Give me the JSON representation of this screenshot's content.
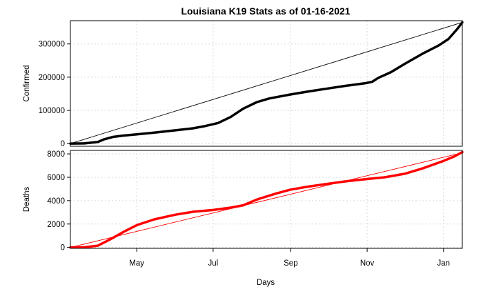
{
  "chart_data": {
    "type": "line",
    "title": "Louisiana K19 Stats as of 01-16-2021",
    "xlabel": "Days",
    "x_range": [
      "2020-03-09",
      "2021-01-16"
    ],
    "x_ticks": [
      {
        "date": "2020-05-01",
        "label": "May"
      },
      {
        "date": "2020-07-01",
        "label": "Jul"
      },
      {
        "date": "2020-09-01",
        "label": "Sep"
      },
      {
        "date": "2020-11-01",
        "label": "Nov"
      },
      {
        "date": "2021-01-01",
        "label": "Jan"
      }
    ],
    "grid": true,
    "panels": [
      {
        "ylabel": "Confirmed",
        "ylim": [
          -8000,
          370000
        ],
        "yticks": [
          0,
          100000,
          200000,
          300000
        ],
        "color": "#000000",
        "trend_line": {
          "from": [
            "2020-03-09",
            0
          ],
          "to": [
            "2021-01-16",
            365000
          ]
        },
        "series": [
          {
            "date": "2020-03-09",
            "value": 0
          },
          {
            "date": "2020-03-20",
            "value": 500
          },
          {
            "date": "2020-03-31",
            "value": 5000
          },
          {
            "date": "2020-04-05",
            "value": 13000
          },
          {
            "date": "2020-04-12",
            "value": 20000
          },
          {
            "date": "2020-04-20",
            "value": 24000
          },
          {
            "date": "2020-05-01",
            "value": 28000
          },
          {
            "date": "2020-05-15",
            "value": 33000
          },
          {
            "date": "2020-06-01",
            "value": 40000
          },
          {
            "date": "2020-06-15",
            "value": 46000
          },
          {
            "date": "2020-06-25",
            "value": 53000
          },
          {
            "date": "2020-07-05",
            "value": 62000
          },
          {
            "date": "2020-07-15",
            "value": 80000
          },
          {
            "date": "2020-07-25",
            "value": 105000
          },
          {
            "date": "2020-08-05",
            "value": 125000
          },
          {
            "date": "2020-08-15",
            "value": 136000
          },
          {
            "date": "2020-09-01",
            "value": 148000
          },
          {
            "date": "2020-09-15",
            "value": 157000
          },
          {
            "date": "2020-10-01",
            "value": 166000
          },
          {
            "date": "2020-10-15",
            "value": 174000
          },
          {
            "date": "2020-10-31",
            "value": 182000
          },
          {
            "date": "2020-11-05",
            "value": 186000
          },
          {
            "date": "2020-11-10",
            "value": 198000
          },
          {
            "date": "2020-11-20",
            "value": 215000
          },
          {
            "date": "2020-12-01",
            "value": 240000
          },
          {
            "date": "2020-12-15",
            "value": 270000
          },
          {
            "date": "2020-12-28",
            "value": 295000
          },
          {
            "date": "2021-01-05",
            "value": 315000
          },
          {
            "date": "2021-01-12",
            "value": 345000
          },
          {
            "date": "2021-01-16",
            "value": 365000
          }
        ]
      },
      {
        "ylabel": "Deaths",
        "ylim": [
          -80,
          8300
        ],
        "yticks": [
          0,
          2000,
          4000,
          6000,
          8000
        ],
        "color": "#ff0000",
        "trend_line": {
          "from": [
            "2020-03-09",
            0
          ],
          "to": [
            "2021-01-16",
            8100
          ]
        },
        "series": [
          {
            "date": "2020-03-09",
            "value": 0
          },
          {
            "date": "2020-03-20",
            "value": 10
          },
          {
            "date": "2020-03-31",
            "value": 150
          },
          {
            "date": "2020-04-10",
            "value": 700
          },
          {
            "date": "2020-04-20",
            "value": 1300
          },
          {
            "date": "2020-05-01",
            "value": 1900
          },
          {
            "date": "2020-05-15",
            "value": 2400
          },
          {
            "date": "2020-06-01",
            "value": 2800
          },
          {
            "date": "2020-06-15",
            "value": 3050
          },
          {
            "date": "2020-07-01",
            "value": 3200
          },
          {
            "date": "2020-07-15",
            "value": 3400
          },
          {
            "date": "2020-07-25",
            "value": 3600
          },
          {
            "date": "2020-08-05",
            "value": 4100
          },
          {
            "date": "2020-08-20",
            "value": 4600
          },
          {
            "date": "2020-09-01",
            "value": 4950
          },
          {
            "date": "2020-09-15",
            "value": 5200
          },
          {
            "date": "2020-10-01",
            "value": 5450
          },
          {
            "date": "2020-10-15",
            "value": 5650
          },
          {
            "date": "2020-11-01",
            "value": 5850
          },
          {
            "date": "2020-11-15",
            "value": 6000
          },
          {
            "date": "2020-12-01",
            "value": 6300
          },
          {
            "date": "2020-12-15",
            "value": 6750
          },
          {
            "date": "2021-01-01",
            "value": 7400
          },
          {
            "date": "2021-01-10",
            "value": 7800
          },
          {
            "date": "2021-01-16",
            "value": 8150
          }
        ]
      }
    ]
  }
}
